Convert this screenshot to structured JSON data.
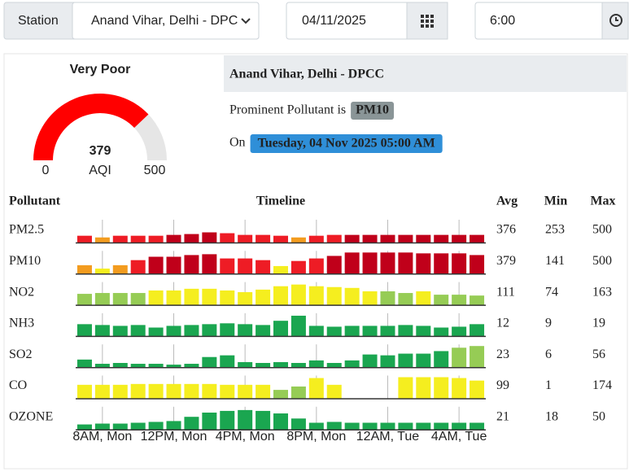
{
  "toolbar": {
    "station_label": "Station",
    "station": "Anand Vihar, Delhi - DPC",
    "date": "04/11/2025",
    "time": "6:00"
  },
  "gauge": {
    "status": "Very Poor",
    "value": 379,
    "min": 0,
    "max": 500,
    "unit": "AQI",
    "color": "#ff0000",
    "track_color": "#e6e6e6"
  },
  "station_title": "Anand Vihar, Delhi - DPCC",
  "prominent": {
    "text": "Prominent Pollutant is",
    "pollutant": "PM10"
  },
  "on": {
    "text": "On",
    "time": "Tuesday, 04 Nov 2025 05:00 AM"
  },
  "table": {
    "headers": [
      "Pollutant",
      "Timeline",
      "Avg",
      "Min",
      "Max"
    ],
    "timeline": [
      null,
      "8AM, Mon",
      null,
      null,
      null,
      "12PM, Mon",
      null,
      null,
      null,
      "4PM, Mon",
      null,
      null,
      null,
      "8PM, Mon",
      null,
      null,
      null,
      "12AM, Tue",
      null,
      null,
      null,
      "4AM, Tue",
      null
    ],
    "palette": [
      "#c0001a",
      "#ee1c25",
      "#f39c1f",
      "#f5ee1f",
      "#96cc55",
      "#1aa650"
    ],
    "rows": [
      {
        "name": "PM2.5",
        "avg": 376,
        "min": 253,
        "max": 500,
        "values": [
          8,
          6,
          8,
          8,
          8,
          9,
          10,
          12,
          11,
          9,
          9,
          8,
          6,
          8,
          9,
          9,
          9,
          9,
          9,
          9,
          9,
          9,
          9
        ],
        "colors": [
          1,
          2,
          1,
          1,
          1,
          0,
          0,
          0,
          1,
          1,
          1,
          1,
          2,
          1,
          1,
          0,
          0,
          0,
          0,
          0,
          0,
          0,
          0
        ]
      },
      {
        "name": "PM10",
        "avg": 379,
        "min": 141,
        "max": 500,
        "values": [
          10,
          6,
          10,
          16,
          20,
          20,
          22,
          23,
          18,
          18,
          16,
          9,
          15,
          18,
          21,
          25,
          25,
          25,
          25,
          24,
          24,
          24,
          22
        ],
        "colors": [
          2,
          3,
          2,
          1,
          0,
          0,
          0,
          0,
          1,
          1,
          1,
          3,
          1,
          1,
          0,
          0,
          0,
          0,
          0,
          0,
          0,
          0,
          0
        ]
      },
      {
        "name": "NO2",
        "avg": 111,
        "min": 74,
        "max": 163,
        "values": [
          13,
          14,
          14,
          14,
          17,
          17,
          19,
          19,
          17,
          15,
          18,
          22,
          24,
          22,
          21,
          20,
          16,
          16,
          14,
          16,
          12,
          12,
          11
        ],
        "colors": [
          4,
          4,
          4,
          4,
          3,
          3,
          3,
          3,
          3,
          3,
          3,
          3,
          3,
          3,
          3,
          3,
          3,
          4,
          4,
          3,
          4,
          4,
          4
        ]
      },
      {
        "name": "NH3",
        "avg": 12,
        "min": 9,
        "max": 19,
        "values": [
          14,
          13,
          12,
          13,
          10,
          12,
          13,
          14,
          15,
          14,
          13,
          18,
          24,
          12,
          11,
          12,
          12,
          12,
          13,
          12,
          10,
          11,
          14
        ],
        "colors": [
          5,
          5,
          5,
          5,
          5,
          5,
          5,
          5,
          5,
          5,
          5,
          5,
          5,
          5,
          5,
          5,
          5,
          5,
          5,
          5,
          5,
          5,
          5
        ]
      },
      {
        "name": "SO2",
        "avg": 23,
        "min": 6,
        "max": 56,
        "values": [
          9,
          4,
          5,
          4,
          4,
          3,
          4,
          12,
          14,
          6,
          5,
          6,
          5,
          8,
          5,
          8,
          15,
          14,
          16,
          16,
          19,
          23,
          25
        ],
        "colors": [
          5,
          5,
          5,
          5,
          5,
          5,
          5,
          5,
          5,
          5,
          5,
          5,
          5,
          5,
          5,
          5,
          5,
          5,
          5,
          5,
          5,
          4,
          4
        ]
      },
      {
        "name": "CO",
        "avg": 99,
        "min": 1,
        "max": 174,
        "values": [
          16,
          16,
          16,
          17,
          17,
          17,
          17,
          17,
          16,
          16,
          16,
          10,
          14,
          24,
          16,
          null,
          null,
          null,
          25,
          25,
          25,
          24,
          21
        ],
        "colors": [
          3,
          3,
          3,
          3,
          3,
          3,
          3,
          3,
          3,
          3,
          3,
          4,
          4,
          3,
          3,
          null,
          null,
          null,
          3,
          3,
          3,
          3,
          3
        ]
      },
      {
        "name": "OZONE",
        "avg": 21,
        "min": 18,
        "max": 50,
        "values": [
          6,
          7,
          7,
          8,
          9,
          10,
          15,
          20,
          22,
          23,
          22,
          19,
          13,
          8,
          9,
          8,
          8,
          8,
          8,
          8,
          8,
          8,
          8
        ],
        "colors": [
          5,
          5,
          5,
          5,
          5,
          5,
          5,
          5,
          5,
          5,
          5,
          5,
          5,
          5,
          5,
          5,
          5,
          5,
          5,
          5,
          5,
          5,
          5
        ]
      }
    ]
  }
}
